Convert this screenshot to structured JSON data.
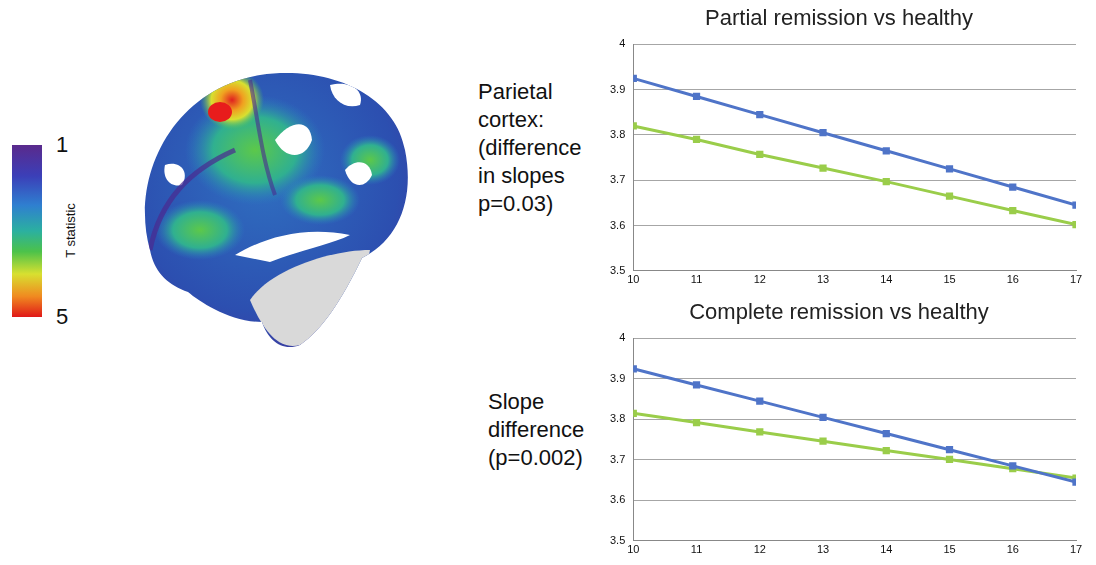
{
  "colorbar": {
    "label": "T statistic",
    "range": [
      1,
      5
    ],
    "ticks": [
      1,
      5
    ]
  },
  "annotations": [
    {
      "lines": [
        "Parietal",
        "cortex:",
        "(difference",
        "in slopes",
        "p=0.03)"
      ]
    },
    {
      "lines": [
        "Slope",
        "difference",
        "(p=0.002)"
      ]
    }
  ],
  "chart_data": [
    {
      "type": "line",
      "title": "Partial remission vs healthy",
      "x": [
        10,
        11,
        12,
        13,
        14,
        15,
        16,
        17
      ],
      "xlim": [
        10,
        17
      ],
      "xticks": [
        10,
        11,
        12,
        13,
        14,
        15,
        16,
        17
      ],
      "ylim": [
        3.5,
        4
      ],
      "yticks": [
        3.5,
        3.6,
        3.7,
        3.8,
        3.9,
        4
      ],
      "grid": "y",
      "series": [
        {
          "color": "#4f74c8",
          "marker": "square",
          "values": [
            3.925,
            3.885,
            3.845,
            3.805,
            3.765,
            3.725,
            3.685,
            3.645
          ]
        },
        {
          "color": "#9acd4a",
          "marker": "square",
          "values": [
            3.82,
            3.79,
            3.757,
            3.727,
            3.697,
            3.665,
            3.633,
            3.602
          ]
        }
      ]
    },
    {
      "type": "line",
      "title": "Complete remission vs healthy",
      "x": [
        10,
        11,
        12,
        13,
        14,
        15,
        16,
        17
      ],
      "xlim": [
        10,
        17
      ],
      "xticks": [
        10,
        11,
        12,
        13,
        14,
        15,
        16,
        17
      ],
      "ylim": [
        3.5,
        4
      ],
      "yticks": [
        3.5,
        3.6,
        3.7,
        3.8,
        3.9,
        4
      ],
      "grid": "y",
      "series": [
        {
          "color": "#4f74c8",
          "marker": "square",
          "values": [
            3.925,
            3.885,
            3.845,
            3.805,
            3.765,
            3.725,
            3.685,
            3.645
          ]
        },
        {
          "color": "#9acd4a",
          "marker": "square",
          "values": [
            3.815,
            3.792,
            3.769,
            3.746,
            3.723,
            3.701,
            3.678,
            3.655
          ]
        }
      ]
    }
  ]
}
